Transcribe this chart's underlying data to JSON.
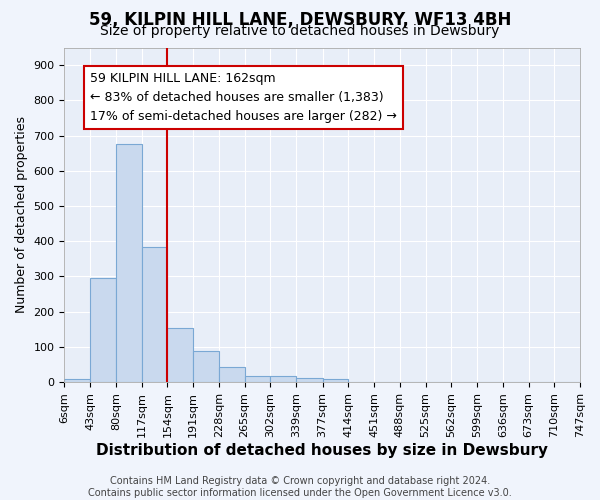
{
  "title": "59, KILPIN HILL LANE, DEWSBURY, WF13 4BH",
  "subtitle": "Size of property relative to detached houses in Dewsbury",
  "xlabel": "Distribution of detached houses by size in Dewsbury",
  "ylabel": "Number of detached properties",
  "bin_labels": [
    "6sqm",
    "43sqm",
    "80sqm",
    "117sqm",
    "154sqm",
    "191sqm",
    "228sqm",
    "265sqm",
    "302sqm",
    "339sqm",
    "377sqm",
    "414sqm",
    "451sqm",
    "488sqm",
    "525sqm",
    "562sqm",
    "599sqm",
    "636sqm",
    "673sqm",
    "710sqm",
    "747sqm"
  ],
  "bar_heights": [
    10,
    295,
    675,
    383,
    155,
    88,
    42,
    18,
    17,
    12,
    9,
    0,
    0,
    0,
    0,
    0,
    0,
    0,
    0,
    0
  ],
  "bar_color": "#c9d9ee",
  "bar_edgecolor": "#7aa8d4",
  "vline_x": 154,
  "vline_color": "#cc0000",
  "annotation_text": "59 KILPIN HILL LANE: 162sqm\n← 83% of detached houses are smaller (1,383)\n17% of semi-detached houses are larger (282) →",
  "annotation_box_facecolor": "#ffffff",
  "annotation_box_edgecolor": "#cc0000",
  "ylim": [
    0,
    950
  ],
  "yticks": [
    0,
    100,
    200,
    300,
    400,
    500,
    600,
    700,
    800,
    900
  ],
  "footer_text": "Contains HM Land Registry data © Crown copyright and database right 2024.\nContains public sector information licensed under the Open Government Licence v3.0.",
  "fig_bg_color": "#f0f4fc",
  "plot_bg_color": "#e8eef8",
  "grid_color": "#ffffff",
  "title_fontsize": 12,
  "subtitle_fontsize": 10,
  "xlabel_fontsize": 11,
  "ylabel_fontsize": 9,
  "tick_fontsize": 8,
  "footer_fontsize": 7,
  "annot_fontsize": 9
}
